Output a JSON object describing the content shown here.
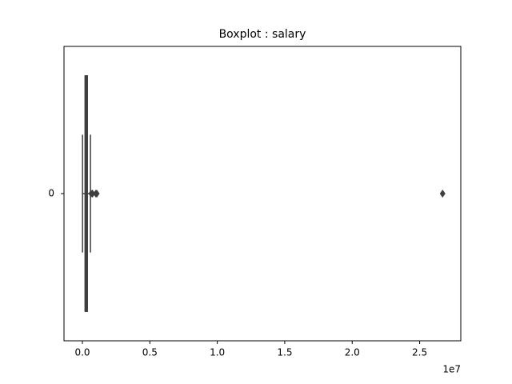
{
  "chart_data": {
    "type": "box",
    "title": "Boxplot : salary",
    "categories": [
      "0"
    ],
    "boxes": [
      {
        "whislo": 10000,
        "q1": 200000,
        "median": 280000,
        "q3": 370000,
        "whishi": 600000,
        "outliers": [
          650000,
          750000,
          1000000,
          1070000,
          26700000
        ]
      }
    ],
    "color": "#3f3f3f",
    "xlim": [
      -1363000,
      28050000
    ],
    "xticks": [
      {
        "value": 0,
        "label": "0.0"
      },
      {
        "value": 5000000,
        "label": "0.5"
      },
      {
        "value": 10000000,
        "label": "1.0"
      },
      {
        "value": 15000000,
        "label": "1.5"
      },
      {
        "value": 20000000,
        "label": "2.0"
      },
      {
        "value": 25000000,
        "label": "2.5"
      }
    ],
    "offset_label": "1e7",
    "grid": false
  }
}
